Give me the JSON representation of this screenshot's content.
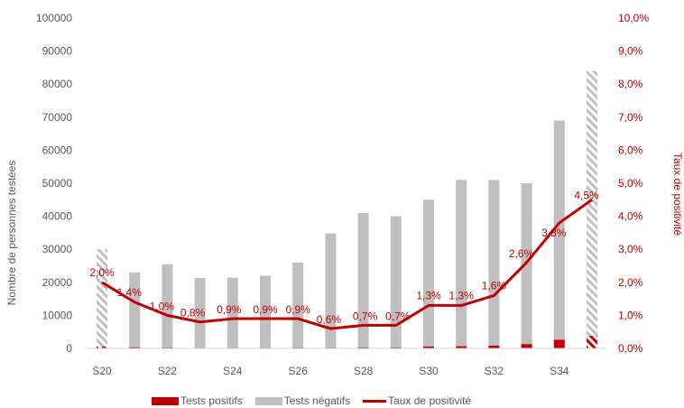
{
  "chart_data": {
    "type": "bar+line",
    "x_ticks": [
      "S20",
      "S22",
      "S24",
      "S26",
      "S28",
      "S30",
      "S32",
      "S34"
    ],
    "weeks": [
      "S20",
      "S21",
      "S22",
      "S23",
      "S24",
      "S25",
      "S26",
      "S27",
      "S28",
      "S29",
      "S30",
      "S31",
      "S32",
      "S33",
      "S34",
      "S35"
    ],
    "series": [
      {
        "name": "Tests positifs",
        "type": "stacked-bar",
        "axis": "left",
        "color": "#c00000",
        "values": [
          600,
          320,
          250,
          170,
          190,
          200,
          230,
          210,
          290,
          280,
          580,
          660,
          820,
          1300,
          2620,
          3800
        ]
      },
      {
        "name": "Tests négatifs",
        "type": "stacked-bar",
        "axis": "left",
        "color": "#bfbfbf",
        "values": [
          29400,
          22680,
          25250,
          21130,
          21210,
          21800,
          25770,
          34590,
          40710,
          39720,
          44420,
          50340,
          50180,
          48700,
          66380,
          80200
        ]
      },
      {
        "name": "Taux de positivité",
        "type": "line",
        "axis": "right",
        "color": "#c00000",
        "values": [
          2.0,
          1.4,
          1.0,
          0.8,
          0.9,
          0.9,
          0.9,
          0.6,
          0.7,
          0.7,
          1.3,
          1.3,
          1.6,
          2.6,
          3.8,
          4.5
        ]
      }
    ],
    "hatched_weeks": [
      "S20",
      "S35"
    ],
    "data_labels": [
      "2,0%",
      "1,4%",
      "1,0%",
      "0,8%",
      "0,9%",
      "0,9%",
      "0,9%",
      "0,6%",
      "0,7%",
      "0,7%",
      "1,3%",
      "1,3%",
      "1,6%",
      "2,6%",
      "3,8%",
      "4,5%"
    ],
    "ylabel": "Nombre de personnes testées",
    "ylabel_right": "Taux de positivité",
    "ylim": [
      0,
      100000
    ],
    "ylim_right": [
      0,
      10
    ],
    "y_ticks": [
      "0",
      "10000",
      "20000",
      "30000",
      "40000",
      "50000",
      "60000",
      "70000",
      "80000",
      "90000",
      "100000"
    ],
    "y_ticks_right": [
      "0,0%",
      "1,0%",
      "2,0%",
      "3,0%",
      "4,0%",
      "5,0%",
      "6,0%",
      "7,0%",
      "8,0%",
      "9,0%",
      "10,0%"
    ],
    "grid": false,
    "legend_position": "bottom"
  },
  "legend": {
    "positifs": "Tests positifs",
    "negatifs": "Tests négatifs",
    "taux": "Taux de positivité"
  },
  "colors": {
    "positive": "#c00000",
    "negative": "#bfbfbf",
    "line": "#c00000",
    "axis_text": "#595959"
  }
}
